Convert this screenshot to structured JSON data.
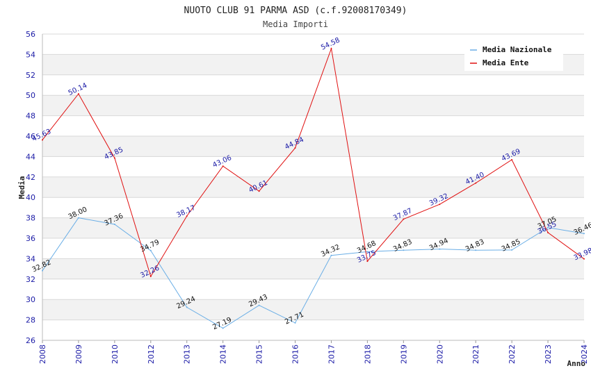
{
  "title": "NUOTO CLUB 91 PARMA ASD (c.f.92008170349)",
  "subtitle": "Media Importi",
  "chart_data": {
    "type": "line",
    "categories": [
      "2008",
      "2009",
      "2010",
      "2012",
      "2013",
      "2014",
      "2015",
      "2016",
      "2017",
      "2018",
      "2019",
      "2020",
      "2021",
      "2022",
      "2023",
      "2024"
    ],
    "series": [
      {
        "name": "Media Nazionale",
        "color": "#6aaee6",
        "label_color": "#111111",
        "values": [
          32.82,
          38.0,
          37.36,
          34.79,
          29.24,
          27.19,
          29.43,
          27.71,
          34.32,
          34.68,
          34.83,
          34.94,
          34.83,
          34.85,
          37.05,
          36.46
        ],
        "labels": [
          "32.82",
          "38.00",
          "37.36",
          "34.79",
          "29.24",
          "27.19",
          "29.43",
          "27.71",
          "34.32",
          "34.68",
          "34.83",
          "34.94",
          "34.83",
          "34.85",
          "37.05",
          "36.46"
        ]
      },
      {
        "name": "Media Ente",
        "color": "#e01010",
        "label_color": "#1a1aa6",
        "values": [
          45.63,
          50.14,
          43.85,
          32.26,
          38.17,
          43.06,
          40.61,
          44.84,
          54.58,
          33.75,
          37.87,
          39.32,
          41.4,
          43.69,
          36.55,
          33.98
        ],
        "labels": [
          "45.63",
          "50.14",
          "43.85",
          "32.26",
          "38.17",
          "43.06",
          "40.61",
          "44.84",
          "54.58",
          "33.75",
          "37.87",
          "39.32",
          "41.40",
          "43.69",
          "36.55",
          "33.98"
        ]
      }
    ],
    "title": "NUOTO CLUB 91 PARMA ASD (c.f.92008170349)",
    "subtitle": "Media Importi",
    "xlabel": "Anno",
    "ylabel": "Media",
    "ylim": [
      26,
      56
    ],
    "ytick_step": 2,
    "yticks": [
      "26",
      "28",
      "30",
      "32",
      "34",
      "36",
      "38",
      "40",
      "42",
      "44",
      "46",
      "48",
      "50",
      "52",
      "54",
      "56"
    ],
    "grid": true,
    "band_color": "#f2f2f2",
    "grid_color": "#d8d8d8",
    "legend_position": "top-right"
  }
}
